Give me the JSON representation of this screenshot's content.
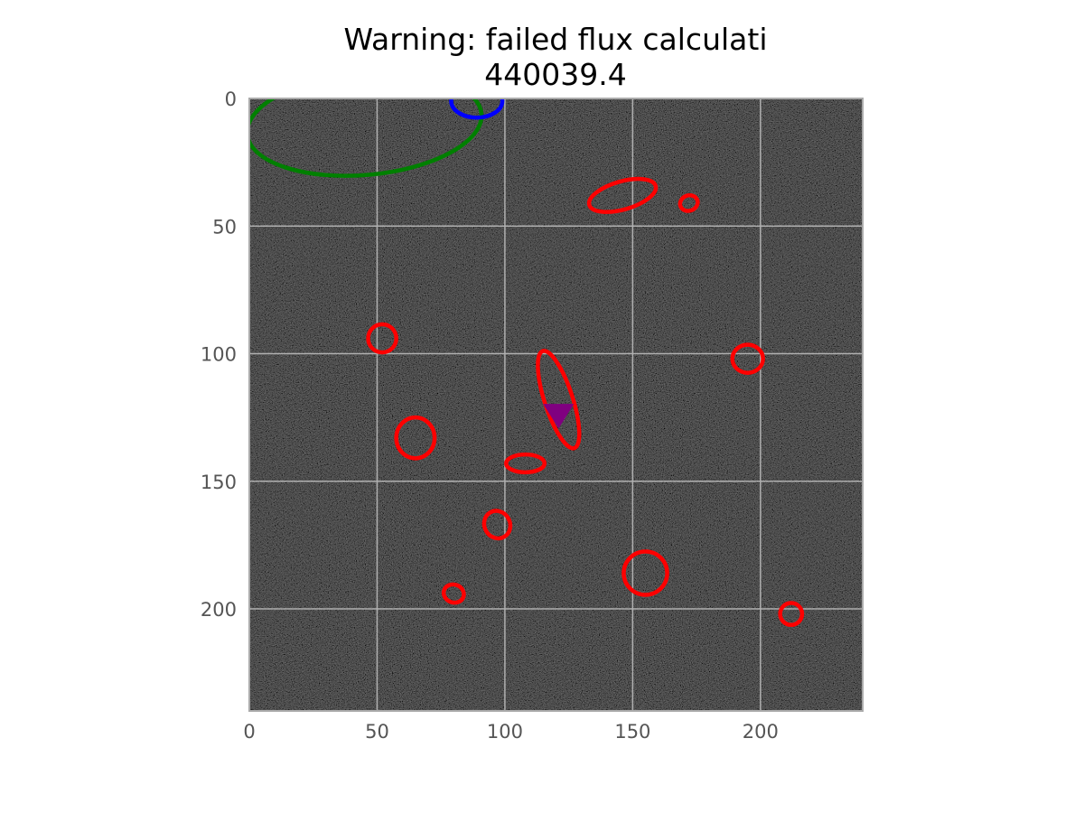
{
  "chart_data": {
    "type": "scatter",
    "title": "Warning: failed flux calculati",
    "subtitle": "440039.4",
    "xlabel": "",
    "ylabel": "",
    "xlim": [
      0,
      240
    ],
    "ylim": [
      240,
      0
    ],
    "x_ticks": [
      0,
      50,
      100,
      150,
      200
    ],
    "y_ticks": [
      0,
      50,
      100,
      150,
      200
    ],
    "grid": true,
    "background": "noisy dark grayscale image",
    "colors": {
      "detected_source": "#ff0000",
      "large_source": "#008000",
      "edge_source": "#0000ff",
      "target_marker": "#800080",
      "grid": "#b0b0b0",
      "axis": "#aaaaaa",
      "tick_label": "#555555"
    },
    "series": [
      {
        "marker": "ellipse",
        "color": "#ff0000",
        "ellipses": [
          {
            "cx": 146,
            "cy": 38,
            "rx": 13.5,
            "ry": 5.5,
            "angle": -16
          },
          {
            "cx": 172,
            "cy": 41,
            "rx": 3.5,
            "ry": 3,
            "angle": -20
          },
          {
            "cx": 52,
            "cy": 94,
            "rx": 5.5,
            "ry": 5.5,
            "angle": 0
          },
          {
            "cx": 195,
            "cy": 102,
            "rx": 6,
            "ry": 5.5,
            "angle": 0
          },
          {
            "cx": 121,
            "cy": 118,
            "rx": 5.5,
            "ry": 20,
            "angle": -18
          },
          {
            "cx": 65,
            "cy": 133,
            "rx": 7.5,
            "ry": 8,
            "angle": 0
          },
          {
            "cx": 108,
            "cy": 143,
            "rx": 7.5,
            "ry": 3.5,
            "angle": 0
          },
          {
            "cx": 97,
            "cy": 167,
            "rx": 5,
            "ry": 5.5,
            "angle": -30
          },
          {
            "cx": 155,
            "cy": 186,
            "rx": 8.5,
            "ry": 8.5,
            "angle": 0
          },
          {
            "cx": 80,
            "cy": 194,
            "rx": 4,
            "ry": 3.5,
            "angle": 20
          },
          {
            "cx": 212,
            "cy": 202,
            "rx": 4.3,
            "ry": 4.3,
            "angle": 0
          }
        ]
      },
      {
        "marker": "ellipse",
        "color": "#008000",
        "ellipses": [
          {
            "cx": 45,
            "cy": 10,
            "rx": 46,
            "ry": 20,
            "angle": -5
          }
        ]
      },
      {
        "marker": "ellipse",
        "color": "#0000ff",
        "ellipses": [
          {
            "cx": 89,
            "cy": 1,
            "rx": 10,
            "ry": 6.5,
            "angle": 0
          }
        ]
      },
      {
        "marker": "triangle-down",
        "color": "#800080",
        "points": [
          {
            "x": 121,
            "y": 123
          }
        ]
      }
    ]
  }
}
